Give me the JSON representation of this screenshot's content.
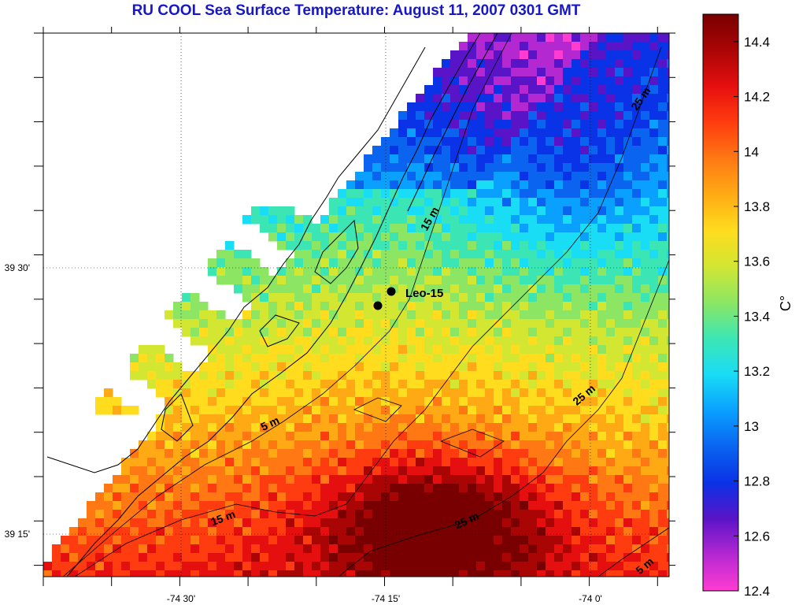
{
  "title": "RU COOL  Sea Surface Temperature:  August 11, 2007 0301 GMT",
  "map": {
    "lon_ticks": [
      "-74 30'",
      "-74 15'",
      "-74 0'"
    ],
    "lat_ticks": [
      "39 30'",
      "39 15'"
    ],
    "contour_labels": [
      "5 m",
      "15 m",
      "15 m",
      "25 m",
      "25 m",
      "25 m",
      "5 m"
    ],
    "station": {
      "name": "Leo-15"
    }
  },
  "colorbar": {
    "unit": "C°",
    "ticks": [
      "14.4",
      "14.2",
      "14",
      "13.8",
      "13.6",
      "13.4",
      "13.2",
      "13",
      "12.8",
      "12.6",
      "12.4"
    ],
    "min": 12.4,
    "max": 14.5,
    "colors": [
      "#ff3cd2",
      "#b428d2",
      "#5a14c8",
      "#0a32e6",
      "#0a64f0",
      "#0aa0ff",
      "#19dcf5",
      "#3ce6b4",
      "#8ce664",
      "#d2e632",
      "#ffdc1e",
      "#ffaa14",
      "#ff7814",
      "#ff3c0f",
      "#e60f0f",
      "#aa0505",
      "#780000"
    ]
  }
}
